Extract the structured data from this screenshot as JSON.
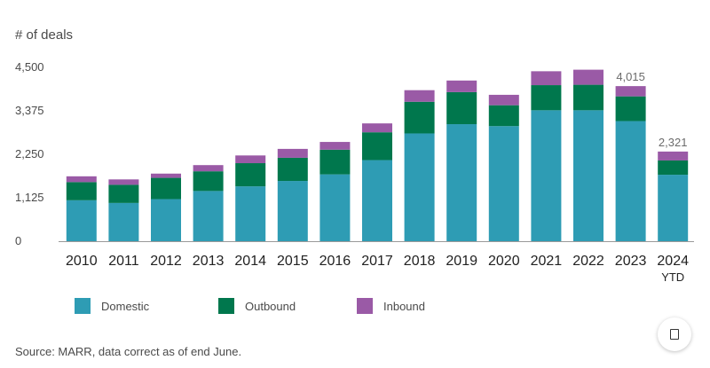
{
  "chart_data": {
    "type": "bar",
    "stacked": true,
    "ylabel": "# of deals",
    "ylim": [
      0,
      4500
    ],
    "yticks": [
      "4,500",
      "3,375",
      "2,250",
      "1,125",
      "0"
    ],
    "ytick_values": [
      4500,
      3375,
      2250,
      1125,
      0
    ],
    "grid": false,
    "categories": [
      "2010",
      "2011",
      "2012",
      "2013",
      "2014",
      "2015",
      "2016",
      "2017",
      "2018",
      "2019",
      "2020",
      "2021",
      "2022",
      "2023",
      "2024"
    ],
    "category_sublabels": [
      "",
      "",
      "",
      "",
      "",
      "",
      "",
      "",
      "",
      "",
      "",
      "",
      "",
      "",
      "YTD"
    ],
    "series": [
      {
        "name": "Domestic",
        "color": "#2e9cb4",
        "values": [
          1060,
          990,
          1090,
          1300,
          1420,
          1560,
          1730,
          2100,
          2790,
          3030,
          2980,
          3390,
          3390,
          3110,
          1720
        ]
      },
      {
        "name": "Outbound",
        "color": "#00774d",
        "values": [
          470,
          470,
          550,
          510,
          600,
          600,
          640,
          720,
          820,
          830,
          540,
          650,
          660,
          640,
          370
        ]
      },
      {
        "name": "Inbound",
        "color": "#9a5aa6",
        "values": [
          150,
          140,
          110,
          160,
          200,
          230,
          200,
          230,
          300,
          300,
          270,
          360,
          390,
          265,
          231
        ]
      }
    ],
    "total_labels": [
      "",
      "",
      "",
      "",
      "",
      "",
      "",
      "",
      "",
      "",
      "",
      "",
      "",
      "4,015",
      "2,321"
    ],
    "legend_position": "bottom"
  },
  "source_text": "Source: MARR, data correct as of end June.",
  "expand_icon": "expand-icon"
}
